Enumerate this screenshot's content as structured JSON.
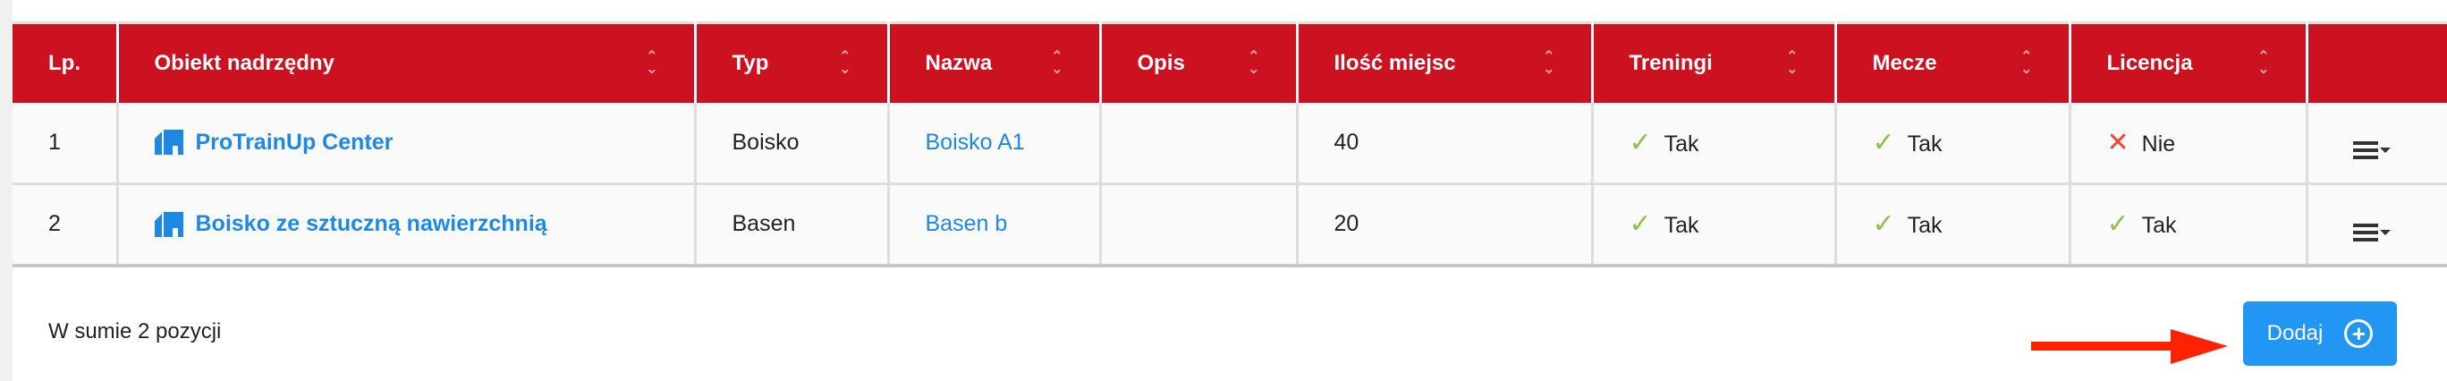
{
  "table": {
    "headers": [
      "Lp.",
      "Obiekt nadrzędny",
      "Typ",
      "Nazwa",
      "Opis",
      "Ilość miejsc",
      "Treningi",
      "Mecze",
      "Licencja",
      ""
    ],
    "rows": [
      {
        "lp": "1",
        "obiekt": "ProTrainUp Center",
        "typ": "Boisko",
        "nazwa": "Boisko A1",
        "opis": "",
        "miejsca": "40",
        "treningi": "Tak",
        "mecze": "Tak",
        "licencja": "Nie",
        "licencja_ok": false
      },
      {
        "lp": "2",
        "obiekt": "Boisko ze sztuczną nawierzchnią",
        "typ": "Basen",
        "nazwa": "Basen b",
        "opis": "",
        "miejsca": "20",
        "treningi": "Tak",
        "mecze": "Tak",
        "licencja": "Tak",
        "licencja_ok": true
      }
    ]
  },
  "footer": {
    "summary": "W sumie 2 pozycji",
    "add_label": "Dodaj"
  },
  "colors": {
    "header": "#cc1120",
    "link": "#1e88e5",
    "button": "#2196f3",
    "check": "#8bc34a",
    "cross": "#f44336",
    "arrow": "#ff2200"
  },
  "icons": {
    "object": "building-home-icon",
    "sort": "sort-icon",
    "yes": "check-icon",
    "no": "cross-icon",
    "menu": "menu-dropdown-icon",
    "add": "plus-circle-icon"
  }
}
